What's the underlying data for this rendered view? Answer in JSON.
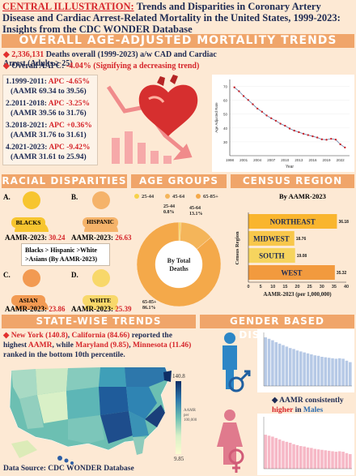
{
  "title": {
    "lead": "CENTRAL ILLUSTRATION:",
    "text": "Trends and Disparities in Coronary Artery Disease and Cardiac Arrest-Related Mortality in the United States, 1999-2023: Insights from the CDC WONDER Database"
  },
  "overall": {
    "header": "OVERALL AGE-ADJUSTED MORTALITY TRENDS",
    "deaths_num": "2,336,131",
    "deaths_text": "Deaths overall (1999-2023) a/w CAD and Cardiac Arrest (Adults ≥ 25)",
    "aapc_label": "Overall AAPC:",
    "aapc_value": "-4.04% (Signifying a decreasing trend)"
  },
  "periods": [
    {
      "label": "1.1999-2011:",
      "apc": "APC -4.65%",
      "aamr": "(AAMR 69.34 to 39.56)"
    },
    {
      "label": "2.2011-2018:",
      "apc": "APC -3.25%",
      "aamr": "(AAMR 39.56 to 31.76)"
    },
    {
      "label": "3.2018-2021:",
      "apc": "APC +0.36%",
      "aamr": "(AAMR 31.76 to 31.61)"
    },
    {
      "label": "4.2021-2023:",
      "apc": "APC -9.42%",
      "aamr": "(AAMR 31.61 to 25.94)"
    }
  ],
  "chart_data": [
    {
      "type": "line",
      "id": "overall_trend",
      "xlabel": "Year",
      "ylabel": "Age Adjusted Rate",
      "x": [
        1999,
        2000,
        2001,
        2002,
        2003,
        2004,
        2005,
        2006,
        2007,
        2008,
        2009,
        2010,
        2011,
        2012,
        2013,
        2014,
        2015,
        2016,
        2017,
        2018,
        2019,
        2020,
        2021,
        2022,
        2023
      ],
      "values": [
        69.3,
        66.5,
        63.0,
        60.2,
        57.1,
        54.0,
        51.7,
        49.0,
        47.0,
        45.2,
        43.1,
        41.6,
        39.6,
        38.1,
        37.0,
        35.8,
        34.9,
        34.0,
        33.1,
        31.8,
        31.5,
        32.2,
        31.6,
        28.2,
        25.9
      ],
      "ylim": [
        20,
        75
      ],
      "xticks": [
        "1998",
        "2001",
        "2004",
        "2007",
        "2010",
        "2013",
        "2016",
        "2019",
        "2022"
      ],
      "yticks": [
        "30",
        "40",
        "50",
        "60",
        "70"
      ]
    },
    {
      "type": "pie",
      "id": "age_groups",
      "legend": [
        "25-44",
        "45-64",
        "65-85+"
      ],
      "colors": [
        "#f6d24a",
        "#f4b55a",
        "#f4a94a"
      ],
      "values": [
        0.8,
        13.1,
        86.1
      ],
      "labels": [
        "25-44\n0.8%",
        "45-64\n13.1%",
        "65-85+\n86.1%"
      ],
      "center_label": "By Total Deaths"
    },
    {
      "type": "bar",
      "id": "census_region",
      "title": "By AAMR-2023",
      "categories": [
        "NORTHEAST",
        "MIDWEST",
        "SOUTH",
        "WEST"
      ],
      "values": [
        36.18,
        18.76,
        19.08,
        35.32
      ],
      "colors": [
        "#f9b52e",
        "#f8c74b",
        "#f6d45e",
        "#f29a3e"
      ],
      "xlabel": "AAMR-2023 (per 1,000,000)",
      "ylabel": "Census Region",
      "xlim": [
        0,
        40
      ],
      "xticks": [
        "0",
        "5",
        "10",
        "15",
        "20",
        "25",
        "30",
        "35",
        "40"
      ]
    },
    {
      "type": "bar",
      "id": "male_trend",
      "values": [
        100,
        97,
        94,
        90,
        87,
        84,
        81,
        78,
        76,
        73,
        71,
        69,
        67,
        65,
        63,
        62,
        60,
        59,
        58,
        57,
        56,
        57,
        56,
        52,
        49
      ],
      "color": "#b6c9e6"
    },
    {
      "type": "bar",
      "id": "female_trend",
      "values": [
        72,
        70,
        68,
        65,
        62,
        59,
        57,
        55,
        52,
        50,
        48,
        47,
        45,
        44,
        42,
        41,
        40,
        39,
        38,
        37,
        36,
        37,
        36,
        33,
        31
      ],
      "color": "#f6b8c6"
    }
  ],
  "racial": {
    "header": "RACIAL DISPARITIES",
    "aamr_label": "AAMR-2023:",
    "ranking": "Blacks > Hispanic >White >Asians (By AAMR-2023)",
    "groups": [
      {
        "letter": "A.",
        "name": "BLACKS",
        "value": "30.24"
      },
      {
        "letter": "B.",
        "name": "HISPANIC",
        "value": "26.63"
      },
      {
        "letter": "C.",
        "name": "ASIAN",
        "value": "23.86"
      },
      {
        "letter": "D.",
        "name": "WHITE",
        "value": "25.39"
      }
    ]
  },
  "age": {
    "header": "AGE GROUPS"
  },
  "census": {
    "header": "CENSUS REGION",
    "subtitle": "By AAMR-2023"
  },
  "state": {
    "header": "STATE-WISE TRENDS",
    "ny": "New York (140.8)",
    "ca": "California (84.66)",
    "text1": "reported the highest",
    "aamr": "AAMR",
    "text2": "while",
    "md": "Maryland (9.85)",
    "mn": "Minnesota (11.46)",
    "text3": "ranked in the bottom 10th percentile.",
    "legend_max": "140.8",
    "legend_min": "9.85",
    "legend_label_1": "AAMR",
    "legend_label_2": "per",
    "legend_label_3": "100,000"
  },
  "gender": {
    "header": "GENDER BASED DISPARITIES",
    "note1": "AAMR consistently",
    "note2": "higher",
    "note3": "in",
    "note4": "Males"
  },
  "source": "Data Source: CDC WONDER Database"
}
